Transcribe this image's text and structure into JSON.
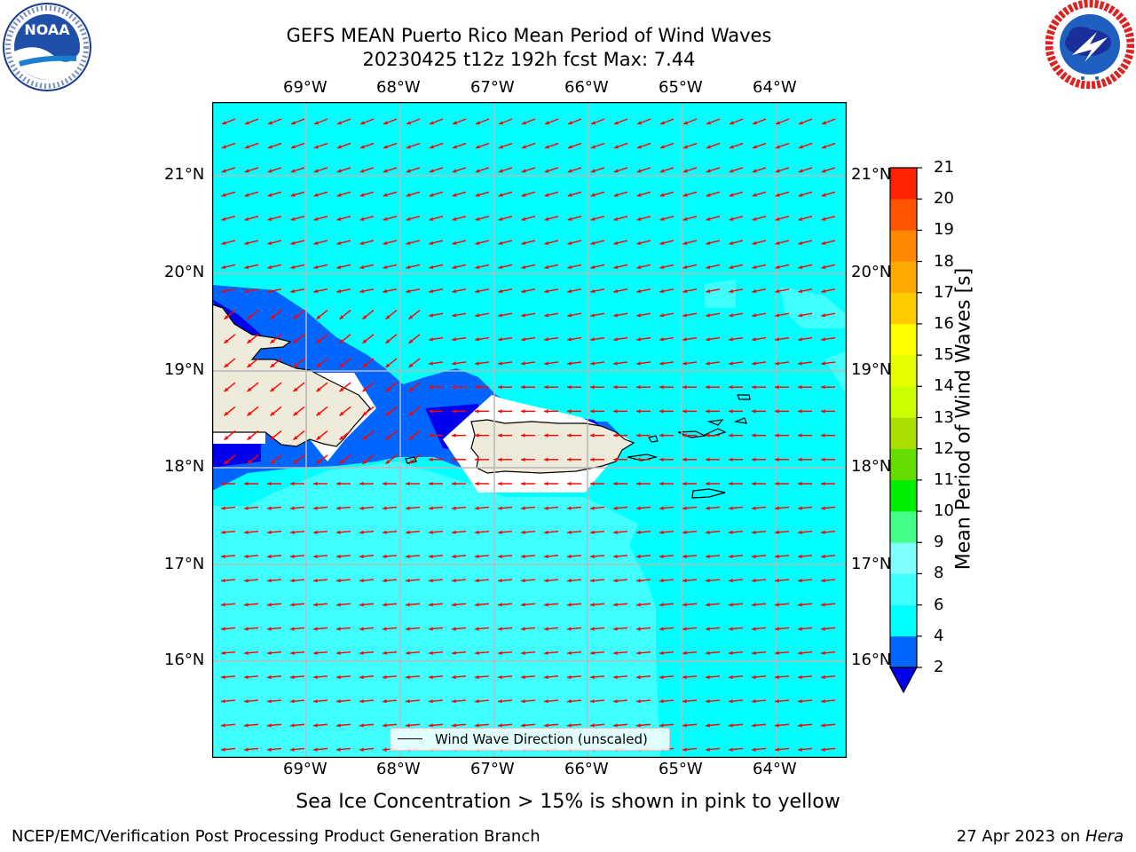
{
  "header": {
    "title_line1": "GEFS MEAN Puerto Rico Mean Period of Wind Waves",
    "title_line2": "20230425 t12z 192h fcst   Max: 7.44"
  },
  "logos": {
    "left": {
      "name": "noaa-logo",
      "text": "NOAA",
      "ring_text": "NATIONAL OCEANIC AND ATMOSPHERIC ADMINISTRATION · U.S. DEPARTMENT OF COMMERCE"
    },
    "right": {
      "name": "nws-logo",
      "ring_text": "NATIONAL WEATHER SERVICE"
    }
  },
  "map": {
    "lon_labels": [
      "69°W",
      "68°W",
      "67°W",
      "66°W",
      "65°W",
      "64°W"
    ],
    "lat_labels": [
      "21°N",
      "20°N",
      "19°N",
      "18°N",
      "17°N",
      "16°N"
    ],
    "legend_label": "Wind Wave Direction (unscaled)",
    "arrow_color": "#ff0000",
    "field_colors": {
      "2-4": "#0066ff",
      "4-6": "#00ffff",
      "6-8": "#40ffff",
      "8-9": "#80ffff",
      "below-2": "#0000ff",
      "land": "#eeebda"
    }
  },
  "colorbar": {
    "label": "Mean Period of Wind Waves [s]",
    "ticks": [
      "2",
      "4",
      "6",
      "8",
      "9",
      "10",
      "11",
      "12",
      "13",
      "14",
      "15",
      "16",
      "17",
      "18",
      "19",
      "20",
      "21"
    ],
    "colors": [
      "#0066ff",
      "#00ffff",
      "#40ffff",
      "#80ffff",
      "#44ff88",
      "#00ee00",
      "#66dd00",
      "#aadd00",
      "#ccff00",
      "#e6ff00",
      "#ffff00",
      "#ffcc00",
      "#ffaa00",
      "#ff8800",
      "#ff5500",
      "#ff2200"
    ],
    "extend_color": "#0000ee",
    "top_color": "#ff0000"
  },
  "notes": {
    "ice_note": "Sea Ice Concentration > 15% is shown in pink to yellow",
    "footer_left": "NCEP/EMC/Verification Post Processing Product Generation Branch",
    "footer_date": "27 Apr 2023 on ",
    "footer_host": "Hera"
  }
}
